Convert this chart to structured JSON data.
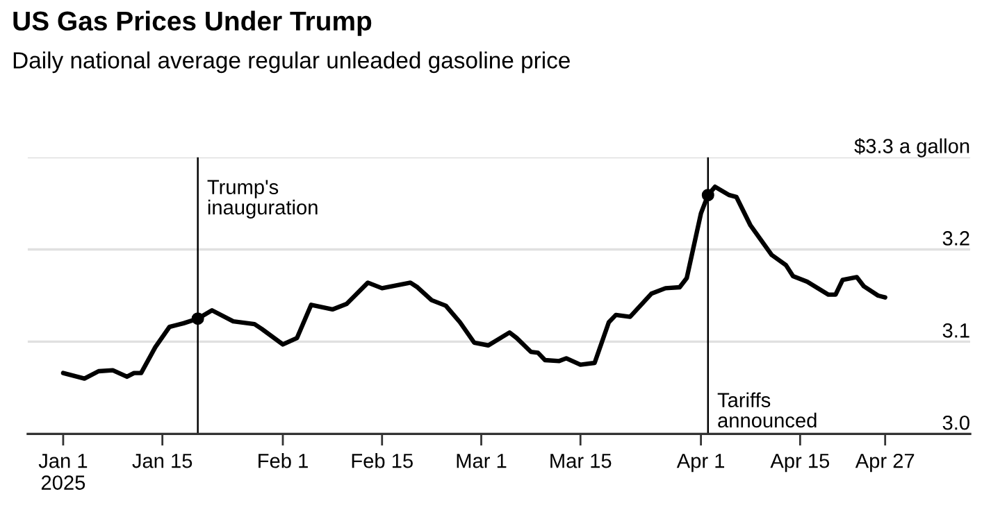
{
  "chart_data": {
    "type": "line",
    "title": "US Gas Prices Under Trump",
    "subtitle": "Daily national average regular unleaded gasoline price",
    "x": [
      "2025-01-01",
      "2025-01-04",
      "2025-01-06",
      "2025-01-08",
      "2025-01-10",
      "2025-01-11",
      "2025-01-12",
      "2025-01-14",
      "2025-01-16",
      "2025-01-18",
      "2025-01-20",
      "2025-01-22",
      "2025-01-25",
      "2025-01-28",
      "2025-01-29",
      "2025-02-01",
      "2025-02-03",
      "2025-02-05",
      "2025-02-08",
      "2025-02-10",
      "2025-02-13",
      "2025-02-15",
      "2025-02-17",
      "2025-02-19",
      "2025-02-20",
      "2025-02-22",
      "2025-02-24",
      "2025-02-26",
      "2025-02-28",
      "2025-03-02",
      "2025-03-05",
      "2025-03-06",
      "2025-03-08",
      "2025-03-09",
      "2025-03-10",
      "2025-03-12",
      "2025-03-13",
      "2025-03-15",
      "2025-03-17",
      "2025-03-19",
      "2025-03-20",
      "2025-03-22",
      "2025-03-25",
      "2025-03-27",
      "2025-03-29",
      "2025-03-30",
      "2025-04-01",
      "2025-04-02",
      "2025-04-03",
      "2025-04-05",
      "2025-04-06",
      "2025-04-08",
      "2025-04-11",
      "2025-04-13",
      "2025-04-14",
      "2025-04-16",
      "2025-04-19",
      "2025-04-20",
      "2025-04-21",
      "2025-04-23",
      "2025-04-24",
      "2025-04-26",
      "2025-04-27"
    ],
    "series": [
      {
        "color": "#000000",
        "values": [
          3.066,
          3.06,
          3.068,
          3.069,
          3.062,
          3.066,
          3.066,
          3.094,
          3.116,
          3.12,
          3.125,
          3.134,
          3.122,
          3.119,
          3.114,
          3.097,
          3.104,
          3.14,
          3.135,
          3.141,
          3.164,
          3.158,
          3.161,
          3.164,
          3.159,
          3.145,
          3.139,
          3.121,
          3.099,
          3.096,
          3.11,
          3.104,
          3.089,
          3.088,
          3.08,
          3.079,
          3.082,
          3.075,
          3.077,
          3.121,
          3.129,
          3.127,
          3.152,
          3.158,
          3.159,
          3.169,
          3.239,
          3.259,
          3.268,
          3.259,
          3.257,
          3.226,
          3.194,
          3.183,
          3.171,
          3.165,
          3.151,
          3.151,
          3.167,
          3.17,
          3.16,
          3.15,
          3.148
        ]
      },
      {
        "type": "scatter",
        "color": "#000000",
        "x": [
          "2025-01-20",
          "2025-04-02"
        ],
        "values": [
          3.125,
          3.259
        ]
      }
    ],
    "xlim": [
      "2024-12-27",
      "2025-05-09"
    ],
    "xticks": [
      {
        "value": "2025-01-01",
        "label": "Jan 1\n2025"
      },
      {
        "value": "2025-01-15",
        "label": "Jan 15"
      },
      {
        "value": "2025-02-01",
        "label": "Feb 1"
      },
      {
        "value": "2025-02-15",
        "label": "Feb 15"
      },
      {
        "value": "2025-03-01",
        "label": "Mar 1"
      },
      {
        "value": "2025-03-15",
        "label": "Mar 15"
      },
      {
        "value": "2025-04-01",
        "label": "Apr 1"
      },
      {
        "value": "2025-04-15",
        "label": "Apr 15"
      },
      {
        "value": "2025-04-27",
        "label": "Apr 27"
      }
    ],
    "ylim": [
      3.0,
      3.3
    ],
    "yticks": [
      {
        "value": 3.0,
        "label": "3.0"
      },
      3.1,
      3.2,
      {
        "value": 3.3,
        "label": "$3.3 a gallon"
      }
    ],
    "grid": "y",
    "legend": false,
    "ref_lines": [
      {
        "axis": "x",
        "value": "2025-01-20",
        "label": "Trump's\ninauguration",
        "color": "#000000"
      },
      {
        "axis": "x",
        "value": "2025-04-02",
        "label": "Tariffs\nannounced",
        "color": "#000000"
      }
    ]
  }
}
